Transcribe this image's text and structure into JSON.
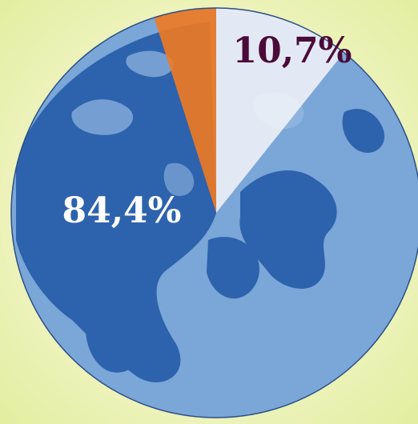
{
  "chart_data": {
    "type": "pie",
    "title": "",
    "slices": [
      {
        "label": "",
        "value": 10.7,
        "display": "10,7%",
        "color": "#f4f4f8"
      },
      {
        "label": "",
        "value": 84.4,
        "display": "84,4%",
        "color": "#2d62ad"
      },
      {
        "label": "",
        "value": 4.9,
        "display": "",
        "color": "#f07a22"
      }
    ],
    "start_angle_deg": 0,
    "direction": "clockwise",
    "label_colors": {
      "10,7%": "#4a0b39",
      "84,4%": "#ffffff"
    },
    "background_art": "globe-icon"
  }
}
